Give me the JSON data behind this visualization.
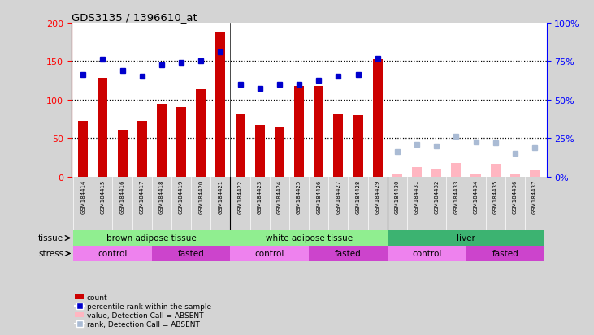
{
  "title": "GDS3135 / 1396610_at",
  "samples": [
    "GSM184414",
    "GSM184415",
    "GSM184416",
    "GSM184417",
    "GSM184418",
    "GSM184419",
    "GSM184420",
    "GSM184421",
    "GSM184422",
    "GSM184423",
    "GSM184424",
    "GSM184425",
    "GSM184426",
    "GSM184427",
    "GSM184428",
    "GSM184429",
    "GSM184430",
    "GSM184431",
    "GSM184432",
    "GSM184433",
    "GSM184434",
    "GSM184435",
    "GSM184436",
    "GSM184437"
  ],
  "count_present": [
    72,
    128,
    61,
    72,
    95,
    90,
    114,
    188,
    82,
    67,
    64,
    118,
    118,
    82,
    80,
    153
  ],
  "rank_present": [
    66,
    76,
    69,
    65,
    72.5,
    74,
    75,
    81,
    60,
    57.5,
    60,
    60,
    62.5,
    65,
    66.5,
    77
  ],
  "count_absent": [
    3,
    12,
    10,
    17,
    4,
    16,
    3,
    8
  ],
  "rank_absent": [
    16,
    21,
    20,
    26,
    22.5,
    22,
    15,
    19
  ],
  "present_count": 16,
  "ylim_left": [
    0,
    200
  ],
  "ylim_right": [
    0,
    100
  ],
  "yticks_left": [
    0,
    50,
    100,
    150,
    200
  ],
  "yticks_right": [
    0,
    25,
    50,
    75,
    100
  ],
  "ytick_labels_right": [
    "0%",
    "25%",
    "50%",
    "75%",
    "100%"
  ],
  "bar_color_present": "#CC0000",
  "bar_color_absent": "#FFB6C1",
  "dot_color_present": "#0000CC",
  "dot_color_absent": "#AABBD4",
  "tissue_groups": [
    {
      "label": "brown adipose tissue",
      "xstart": 0,
      "xend": 8
    },
    {
      "label": "white adipose tissue",
      "xstart": 8,
      "xend": 16
    },
    {
      "label": "liver",
      "xstart": 16,
      "xend": 24
    }
  ],
  "tissue_color_bat": "#90EE90",
  "tissue_color_wat": "#90EE90",
  "tissue_color_liver": "#3CB371",
  "stress_groups": [
    {
      "label": "control",
      "xstart": 0,
      "xend": 4
    },
    {
      "label": "fasted",
      "xstart": 4,
      "xend": 8
    },
    {
      "label": "control",
      "xstart": 8,
      "xend": 12
    },
    {
      "label": "fasted",
      "xstart": 12,
      "xend": 16
    },
    {
      "label": "control",
      "xstart": 16,
      "xend": 20
    },
    {
      "label": "fasted",
      "xstart": 20,
      "xend": 24
    }
  ],
  "stress_color_control": "#EE82EE",
  "stress_color_fasted": "#CC44CC",
  "fig_bg": "#D4D4D4",
  "plot_bg": "#FFFFFF",
  "xticklabel_bg": "#C8C8C8",
  "grid_yticks": [
    50,
    100,
    150
  ],
  "bar_width": 0.5
}
